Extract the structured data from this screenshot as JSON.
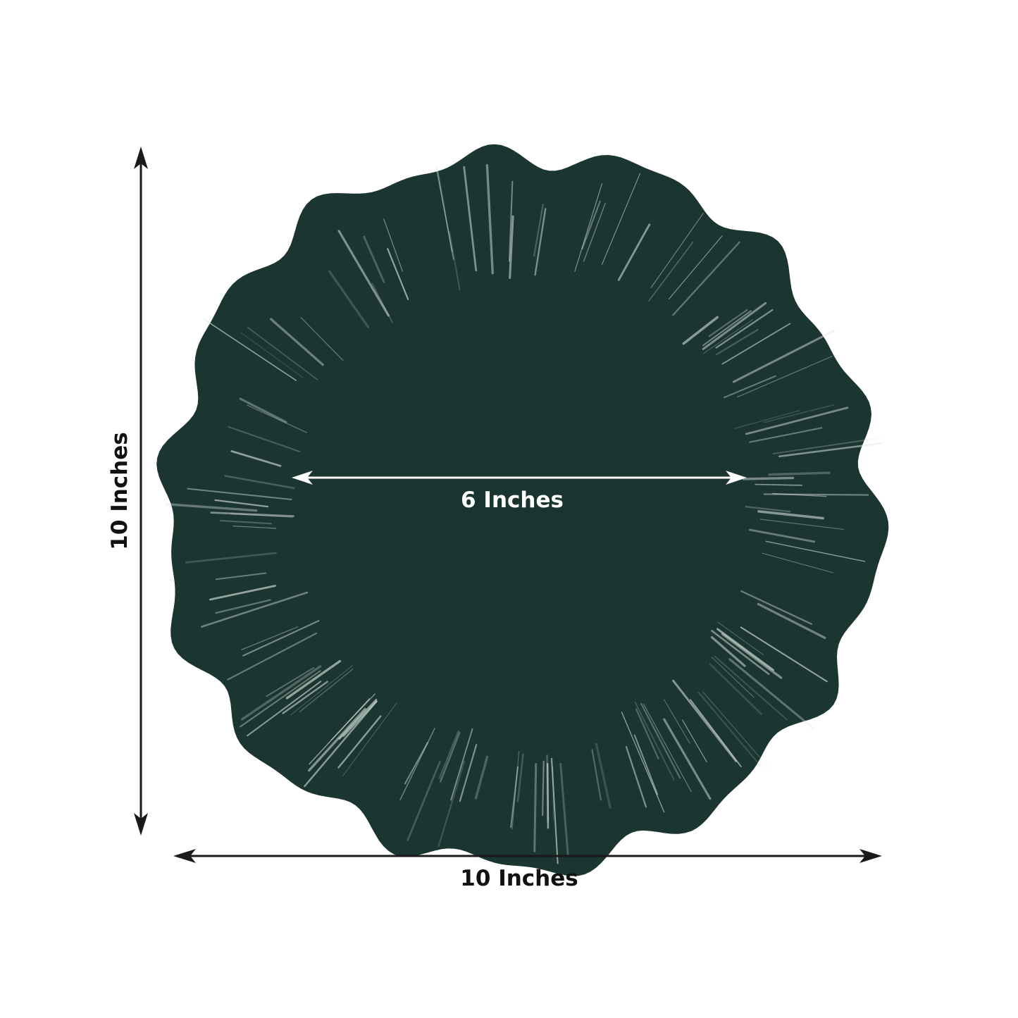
{
  "dimensions": {
    "height_label": "10 Inches",
    "width_label": "10 Inches",
    "inner_label": "6 Inches"
  },
  "colors": {
    "plate": "#1b3530",
    "plate_highlight": "#dfe8e4",
    "outer_arrow": "#1a1a1a",
    "inner_arrow": "#ffffff"
  },
  "icons": {
    "outer_arrows": "double-headed-arrow-icon",
    "inner_arrow": "double-headed-arrow-icon"
  }
}
